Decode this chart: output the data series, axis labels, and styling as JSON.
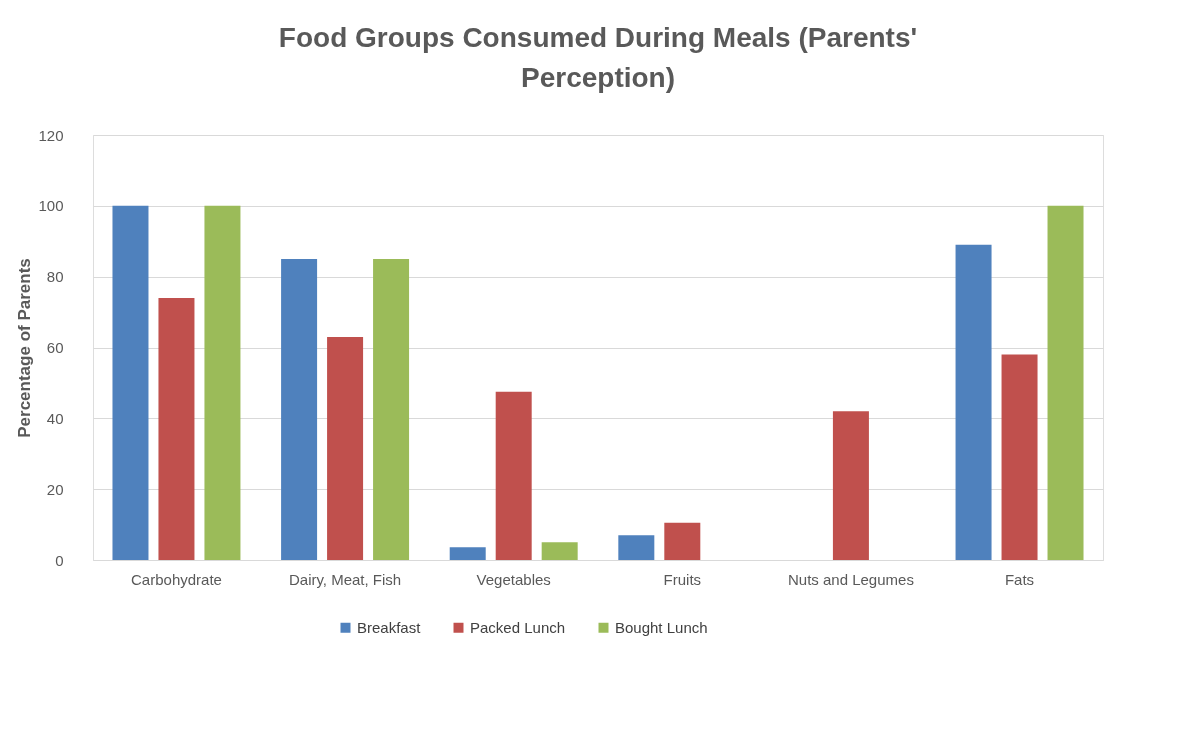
{
  "chart_data": {
    "type": "bar",
    "title": "Food Groups Consumed During Meals (Parents' Perception)",
    "ylabel": "Percentage of Parents",
    "categories": [
      "Carbohydrate",
      "Dairy, Meat, Fish",
      "Vegetables",
      "Fruits",
      "Nuts and Legumes",
      "Fats"
    ],
    "series": [
      {
        "name": "Breakfast",
        "color": "#4f81bd",
        "values": [
          100,
          85,
          3.6,
          7,
          0,
          89
        ]
      },
      {
        "name": "Packed Lunch",
        "color": "#c0504d",
        "values": [
          74,
          63,
          47.5,
          10.5,
          42,
          58
        ]
      },
      {
        "name": "Bought Lunch",
        "color": "#9bbb59",
        "values": [
          100,
          85,
          5,
          0,
          0,
          100
        ]
      }
    ],
    "ylim": [
      0,
      120
    ],
    "yticks": [
      0,
      20,
      40,
      60,
      80,
      100,
      120
    ],
    "grid": "y",
    "legend": "bottom"
  }
}
